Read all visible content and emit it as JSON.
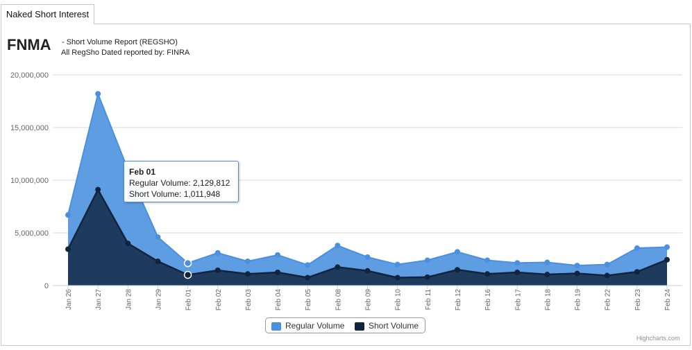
{
  "tab": {
    "label": "Naked Short Interest"
  },
  "header": {
    "ticker": "FNMA",
    "subtitle_line1": "- Short Volume Report  (REGSHO)",
    "subtitle_line2": "All RegSho Dated reported by: FINRA"
  },
  "tooltip": {
    "date": "Feb 01",
    "regular_text": "Regular Volume: 2,129,812",
    "short_text": "Short Volume: 1,011,948"
  },
  "legend": {
    "regular": "Regular Volume",
    "short": "Short Volume"
  },
  "credits": "Highcharts.com",
  "colors": {
    "regular": "#4a8fe0",
    "short": "#11243f",
    "regular_fill": "#5f9de2",
    "short_fill": "#1e3a5c"
  },
  "chart_data": {
    "type": "area",
    "categories": [
      "Jan 26",
      "Jan 27",
      "Jan 28",
      "Jan 29",
      "Feb 01",
      "Feb 02",
      "Feb 03",
      "Feb 04",
      "Feb 05",
      "Feb 08",
      "Feb 09",
      "Feb 10",
      "Feb 11",
      "Feb 12",
      "Feb 16",
      "Feb 17",
      "Feb 18",
      "Feb 19",
      "Feb 22",
      "Feb 23",
      "Feb 24"
    ],
    "ylim": [
      0,
      20000000
    ],
    "yticks": [
      0,
      5000000,
      10000000,
      15000000,
      20000000
    ],
    "ytick_labels": [
      "0",
      "5,000,000",
      "10,000,000",
      "15,000,000",
      "20,000,000"
    ],
    "grid": true,
    "legend_position": "bottom-center",
    "series": [
      {
        "name": "Regular Volume",
        "values": [
          6700000,
          18200000,
          11000000,
          4600000,
          2129812,
          3100000,
          2300000,
          2900000,
          1950000,
          3800000,
          2700000,
          2000000,
          2400000,
          3200000,
          2400000,
          2150000,
          2200000,
          1900000,
          2000000,
          3550000,
          3650000
        ]
      },
      {
        "name": "Short Volume",
        "values": [
          3450000,
          9100000,
          4000000,
          2300000,
          1011948,
          1450000,
          1100000,
          1250000,
          750000,
          1750000,
          1400000,
          750000,
          800000,
          1500000,
          1100000,
          1250000,
          1050000,
          1150000,
          950000,
          1300000,
          2450000
        ]
      }
    ]
  }
}
